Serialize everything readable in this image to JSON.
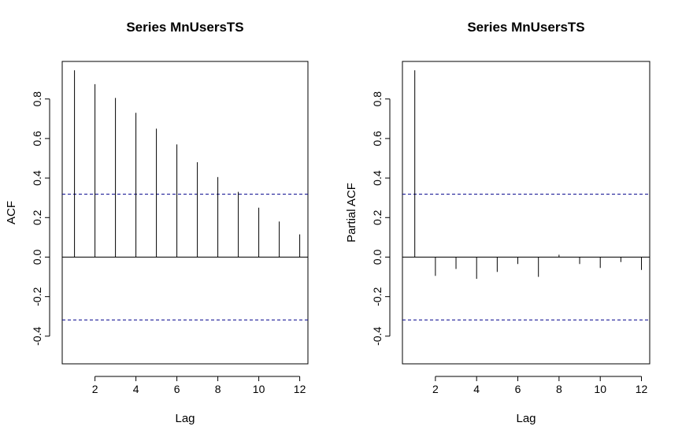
{
  "chart_data": [
    {
      "type": "bar",
      "title": "Series  MnUsersTS",
      "xlabel": "Lag",
      "ylabel": "ACF",
      "x": [
        1,
        2,
        3,
        4,
        5,
        6,
        7,
        8,
        9,
        10,
        11,
        12
      ],
      "values": [
        0.945,
        0.875,
        0.805,
        0.73,
        0.65,
        0.57,
        0.48,
        0.405,
        0.33,
        0.25,
        0.18,
        0.115
      ],
      "xticks": [
        2,
        4,
        6,
        8,
        10,
        12
      ],
      "yticks": [
        -0.4,
        -0.2,
        0.0,
        0.2,
        0.4,
        0.6,
        0.8
      ],
      "ytick_labels": [
        "-0.4",
        "-0.2",
        "0.0",
        "0.2",
        "0.4",
        "0.6",
        "0.8"
      ],
      "xlim": [
        0.4,
        12.4
      ],
      "ylim": [
        -0.54,
        0.99
      ],
      "confidence_bounds": [
        0.318,
        -0.318
      ],
      "grid": false,
      "line_color": "#000000",
      "bound_color": "#00008b"
    },
    {
      "type": "bar",
      "title": "Series  MnUsersTS",
      "xlabel": "Lag",
      "ylabel": "Partial ACF",
      "x": [
        1,
        2,
        3,
        4,
        5,
        6,
        7,
        8,
        9,
        10,
        11,
        12
      ],
      "values": [
        0.945,
        -0.095,
        -0.06,
        -0.11,
        -0.075,
        -0.035,
        -0.1,
        0.012,
        -0.035,
        -0.055,
        -0.025,
        -0.065
      ],
      "xticks": [
        2,
        4,
        6,
        8,
        10,
        12
      ],
      "yticks": [
        -0.4,
        -0.2,
        0.0,
        0.2,
        0.4,
        0.6,
        0.8
      ],
      "ytick_labels": [
        "-0.4",
        "-0.2",
        "0.0",
        "0.2",
        "0.4",
        "0.6",
        "0.8"
      ],
      "xlim": [
        0.4,
        12.4
      ],
      "ylim": [
        -0.54,
        0.99
      ],
      "confidence_bounds": [
        0.318,
        -0.318
      ],
      "grid": false,
      "line_color": "#000000",
      "bound_color": "#00008b"
    }
  ]
}
